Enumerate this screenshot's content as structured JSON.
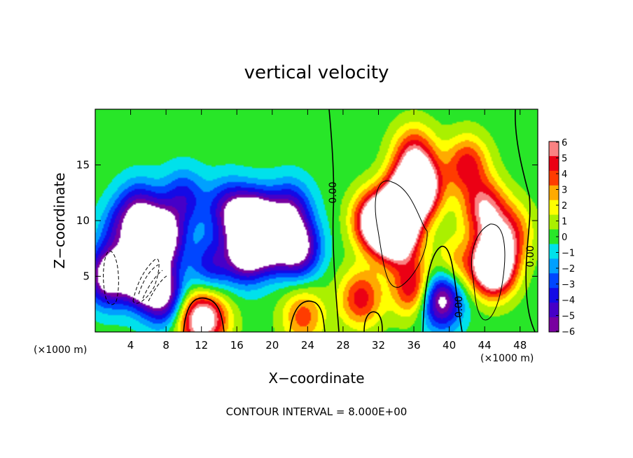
{
  "chart_data": {
    "type": "heatmap",
    "title": "vertical velocity",
    "xlabel": "X−coordinate",
    "ylabel": "Z−coordinate",
    "x_unit_label": "(×1000 m)",
    "x_unit_label_right": "(×1000 m)",
    "xlim": [
      0,
      50
    ],
    "ylim": [
      0,
      20
    ],
    "x_ticks": [
      "4",
      "8",
      "12",
      "16",
      "20",
      "24",
      "28",
      "32",
      "36",
      "40",
      "44",
      "48"
    ],
    "y_ticks": [
      "5",
      "10",
      "15"
    ],
    "colorbar": {
      "ticks": [
        "6",
        "5",
        "4",
        "3",
        "2",
        "1",
        "0",
        "−1",
        "−2",
        "−3",
        "−4",
        "−5",
        "−6"
      ],
      "range": [
        -6,
        6
      ]
    },
    "contour_labels": [
      "0.00",
      "0.00",
      "0.00"
    ],
    "footer": "CONTOUR INTERVAL = 8.000E+00",
    "features": [
      {
        "x": 1.5,
        "z": 5,
        "w": -8
      },
      {
        "x": 5.5,
        "z": 5,
        "w": -10
      },
      {
        "x": 7.5,
        "z": 8.5,
        "w": -9
      },
      {
        "x": 8,
        "z": 3,
        "w": -6
      },
      {
        "x": 5,
        "z": 11,
        "w": -5
      },
      {
        "x": 10,
        "z": 12,
        "w": -4
      },
      {
        "x": 15,
        "z": 11,
        "w": -5
      },
      {
        "x": 18,
        "z": 10,
        "w": -9
      },
      {
        "x": 17,
        "z": 7,
        "w": -7
      },
      {
        "x": 20,
        "z": 8,
        "w": -6
      },
      {
        "x": 22,
        "z": 11,
        "w": -5
      },
      {
        "x": 23,
        "z": 7.5,
        "w": -7
      },
      {
        "x": 13,
        "z": 6,
        "w": -4
      },
      {
        "x": 3,
        "z": 9,
        "w": -4
      },
      {
        "x": 11,
        "z": 1.2,
        "w": 5
      },
      {
        "x": 13,
        "z": 1.2,
        "w": 5
      },
      {
        "x": 23.5,
        "z": 1.4,
        "w": 4
      },
      {
        "x": 34,
        "z": 9,
        "w": 12
      },
      {
        "x": 31.5,
        "z": 10,
        "w": 8
      },
      {
        "x": 35,
        "z": 12,
        "w": 9
      },
      {
        "x": 37,
        "z": 13,
        "w": 7
      },
      {
        "x": 45,
        "z": 6,
        "w": 12
      },
      {
        "x": 44,
        "z": 11,
        "w": 6
      },
      {
        "x": 42,
        "z": 15,
        "w": 5
      },
      {
        "x": 36,
        "z": 16,
        "w": 5
      },
      {
        "x": 47,
        "z": 9,
        "w": 4
      },
      {
        "x": 39,
        "z": 3,
        "w": -8
      },
      {
        "x": 36,
        "z": 4,
        "w": 6
      },
      {
        "x": 30,
        "z": 3,
        "w": 5
      },
      {
        "x": 40.5,
        "z": 6,
        "w": 3
      }
    ]
  }
}
